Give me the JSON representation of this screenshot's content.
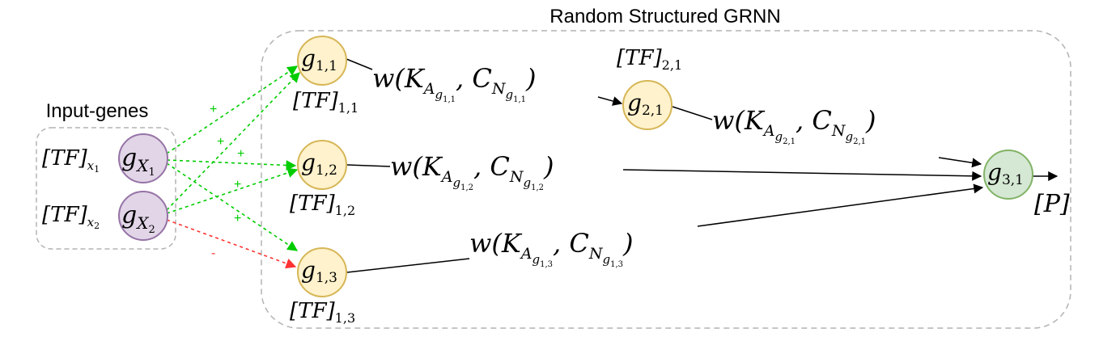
{
  "title": "Random Structured GRNN",
  "input_group_label": "Input-genes",
  "colors": {
    "input_node_fill": "#e1d5e7",
    "input_node_stroke": "#9673a6",
    "hidden_node_fill": "#fff2cc",
    "hidden_node_stroke": "#d6b656",
    "output_node_fill": "#d5e8d4",
    "output_node_stroke": "#82b366",
    "activation_edge": "#00cc00",
    "repression_edge": "#ff3333",
    "weighted_edge": "#000000",
    "group_border": "#b3b3b3"
  },
  "nodes": {
    "x1": {
      "base": "g",
      "sub": "X",
      "subsub": "1",
      "tf_base": "[TF]",
      "tf_sub": "x",
      "tf_subsub": "1"
    },
    "x2": {
      "base": "g",
      "sub": "X",
      "subsub": "2",
      "tf_base": "[TF]",
      "tf_sub": "x",
      "tf_subsub": "2"
    },
    "g11": {
      "base": "g",
      "sub": "1,1",
      "tf_base": "[TF]",
      "tf_sub": "1,1"
    },
    "g12": {
      "base": "g",
      "sub": "1,2",
      "tf_base": "[TF]",
      "tf_sub": "1,2"
    },
    "g13": {
      "base": "g",
      "sub": "1,3",
      "tf_base": "[TF]",
      "tf_sub": "1,3"
    },
    "g21": {
      "base": "g",
      "sub": "2,1",
      "tf_base": "[TF]",
      "tf_sub": "2,1"
    },
    "g31": {
      "base": "g",
      "sub": "3,1",
      "out_label": "[P]"
    }
  },
  "edge_signs": {
    "plus": "+",
    "minus": "-"
  },
  "weights": {
    "w_prefix": "w(K",
    "A": "A",
    "g": "g",
    "comma_c": ", C",
    "N": "N",
    "close": ")",
    "w11": "1,1",
    "w12": "1,2",
    "w13": "1,3",
    "w21": "2,1"
  }
}
